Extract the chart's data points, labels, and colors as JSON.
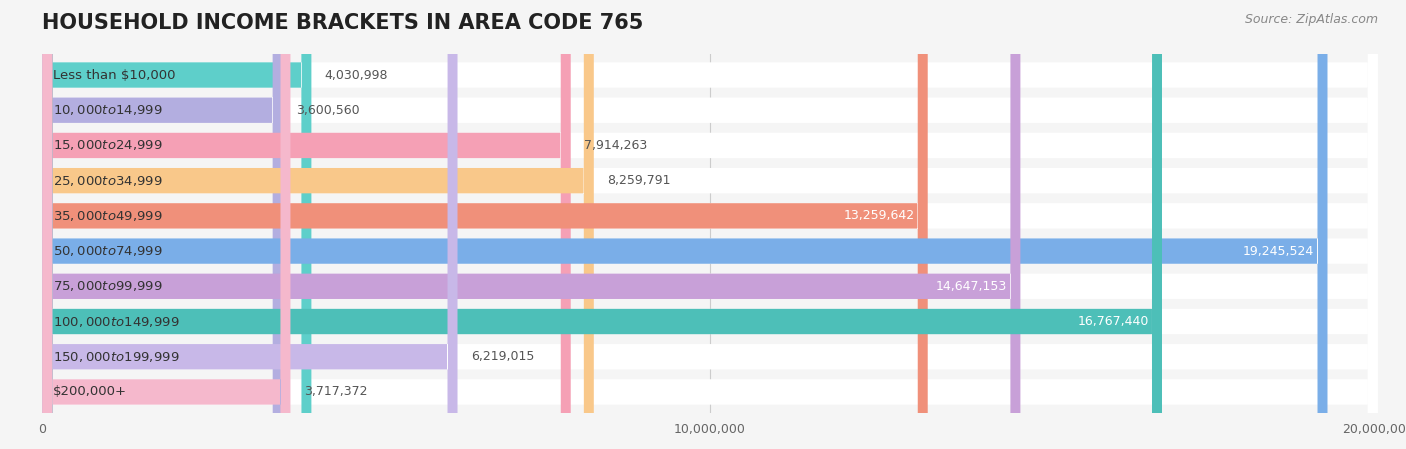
{
  "title": "HOUSEHOLD INCOME BRACKETS IN AREA CODE 765",
  "source": "Source: ZipAtlas.com",
  "categories": [
    "Less than $10,000",
    "$10,000 to $14,999",
    "$15,000 to $24,999",
    "$25,000 to $34,999",
    "$35,000 to $49,999",
    "$50,000 to $74,999",
    "$75,000 to $99,999",
    "$100,000 to $149,999",
    "$150,000 to $199,999",
    "$200,000+"
  ],
  "values": [
    4030998,
    3600560,
    7914263,
    8259791,
    13259642,
    19245524,
    14647153,
    16767440,
    6219015,
    3717372
  ],
  "colors": [
    "#5ecfca",
    "#b3aee0",
    "#f5a0b5",
    "#f9c88a",
    "#f0907a",
    "#7aaee8",
    "#c8a0d8",
    "#4dbfb8",
    "#c8b8e8",
    "#f5b8cc"
  ],
  "bar_height": 0.72,
  "xlim": [
    0,
    20000000
  ],
  "background_color": "#f5f5f5",
  "bar_bg_color": "#ffffff",
  "title_fontsize": 15,
  "label_fontsize": 9.5,
  "value_fontsize": 9.0,
  "tick_fontsize": 9.0,
  "source_fontsize": 9.0
}
